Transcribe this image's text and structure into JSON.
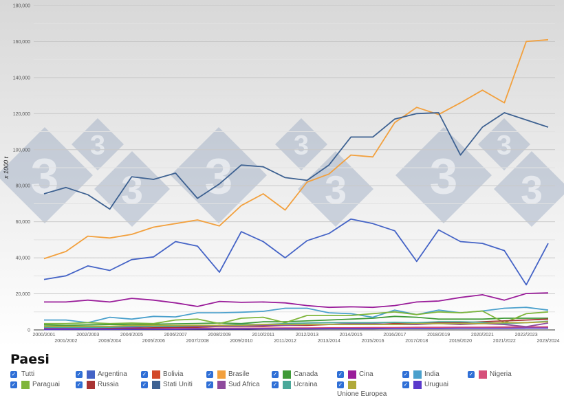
{
  "chart_data": {
    "type": "line",
    "title": "",
    "xlabel": "",
    "ylabel": "x 1000 t",
    "ylim": [
      0,
      180000
    ],
    "yticks": [
      0,
      20000,
      40000,
      60000,
      80000,
      100000,
      120000,
      140000,
      160000,
      180000
    ],
    "ytick_labels": [
      "0",
      "20,000",
      "40,000",
      "60,000",
      "80,000",
      "100,000",
      "120,000",
      "140,000",
      "160,000",
      "180,000"
    ],
    "grid": true,
    "categories": [
      "2000/2001",
      "2001/2002",
      "2002/2003",
      "2003/2004",
      "2004/2005",
      "2005/2006",
      "2006/2007",
      "2007/2008",
      "2008/2009",
      "2009/2010",
      "2010/2011",
      "2011/2012",
      "2012/2013",
      "2013/2014",
      "2014/2015",
      "2015/2016",
      "2016/2017",
      "2017/2018",
      "2018/2019",
      "2019/2020",
      "2020/2021",
      "2021/2022",
      "2022/2023",
      "2023/2024"
    ],
    "legend_placement": "bottom",
    "series": [
      {
        "name": "Argentina",
        "color": "#4463c6",
        "values": [
          28000,
          30000,
          35500,
          33000,
          39000,
          40500,
          49000,
          46500,
          32000,
          54500,
          49000,
          40000,
          49500,
          53500,
          61500,
          59000,
          55000,
          38000,
          55500,
          49000,
          48000,
          44000,
          25000,
          48000
        ]
      },
      {
        "name": "Bolivia",
        "color": "#d2492a",
        "values": [
          600,
          600,
          700,
          700,
          700,
          800,
          800,
          800,
          900,
          900,
          900,
          1000,
          1000,
          1000,
          1100,
          1100,
          1100,
          1200,
          1200,
          1200,
          1300,
          1300,
          1300,
          1400
        ]
      },
      {
        "name": "Brasile",
        "color": "#f2a03d",
        "values": [
          39500,
          43500,
          52000,
          51000,
          53000,
          57000,
          59000,
          61000,
          57700,
          69000,
          75500,
          66500,
          82000,
          86500,
          97000,
          96000,
          115000,
          123500,
          119500,
          126000,
          133000,
          126000,
          160000,
          161000
        ]
      },
      {
        "name": "Canada",
        "color": "#3f9a37",
        "values": [
          2800,
          2500,
          2800,
          3000,
          3000,
          3200,
          3400,
          3600,
          3800,
          3500,
          4500,
          4500,
          5000,
          5500,
          6000,
          6500,
          7500,
          7000,
          6000,
          6000,
          6000,
          6500,
          6500,
          6500
        ]
      },
      {
        "name": "Cina",
        "color": "#9a1d9a",
        "values": [
          15500,
          15500,
          16500,
          15500,
          17500,
          16500,
          15000,
          13000,
          15800,
          15300,
          15500,
          15000,
          13500,
          12500,
          12800,
          12500,
          13500,
          15500,
          16000,
          18000,
          19500,
          16500,
          20200,
          20500
        ]
      },
      {
        "name": "India",
        "color": "#4aa0cc",
        "values": [
          5500,
          5500,
          4000,
          7000,
          6000,
          7500,
          7200,
          9500,
          9500,
          9800,
          10300,
          12000,
          12000,
          9500,
          9000,
          7000,
          11000,
          8500,
          11000,
          9500,
          10500,
          12000,
          12500,
          11000
        ]
      },
      {
        "name": "Nigeria",
        "color": "#d64f7a",
        "values": [
          500,
          600,
          600,
          700,
          700,
          800,
          800,
          900,
          900,
          1000,
          1000,
          1100,
          1100,
          1200,
          1200,
          1300,
          1300,
          1400,
          1400,
          1500,
          1500,
          1600,
          1600,
          1700
        ]
      },
      {
        "name": "Paraguai",
        "color": "#7fb53a",
        "values": [
          3500,
          3500,
          4000,
          3500,
          3800,
          3500,
          5500,
          6000,
          3500,
          6500,
          7000,
          4000,
          8000,
          8000,
          8000,
          9000,
          10000,
          8500,
          10000,
          9500,
          10500,
          4000,
          9000,
          10000
        ]
      },
      {
        "name": "Russia",
        "color": "#a83434",
        "values": [
          500,
          800,
          900,
          1000,
          1000,
          1200,
          1500,
          1500,
          2000,
          2000,
          2000,
          2500,
          2500,
          3000,
          3000,
          3000,
          3500,
          3500,
          4000,
          4000,
          4500,
          5000,
          5500,
          6000
        ]
      },
      {
        "name": "Stati Uniti",
        "color": "#3d6191",
        "values": [
          75500,
          79000,
          75000,
          67000,
          85000,
          83500,
          87000,
          73000,
          81000,
          91500,
          90500,
          84500,
          83000,
          91500,
          107000,
          107000,
          117000,
          120000,
          120500,
          97000,
          112500,
          120500,
          116500,
          112500
        ]
      },
      {
        "name": "Sud Africa",
        "color": "#8e4a9c",
        "values": [
          1000,
          1000,
          1000,
          1500,
          1500,
          2000,
          2000,
          2000,
          2000,
          2000,
          2500,
          2500,
          3000,
          3000,
          3500,
          3500,
          3000,
          3000,
          3500,
          3000,
          3500,
          3000,
          1800,
          3800
        ]
      },
      {
        "name": "Ucraina",
        "color": "#4aa89a",
        "values": [
          1500,
          1500,
          1500,
          1500,
          2000,
          2000,
          2000,
          2500,
          2500,
          3000,
          3000,
          3500,
          3800,
          4000,
          4000,
          4000,
          4200,
          4000,
          4500,
          4500,
          4200,
          3500,
          4000,
          4800
        ]
      },
      {
        "name": "Unione Europea",
        "color": "#b0a93a",
        "values": [
          2000,
          2000,
          2000,
          2000,
          2500,
          2500,
          2500,
          2500,
          2500,
          2500,
          3000,
          3000,
          3000,
          3000,
          3000,
          3000,
          3000,
          3500,
          3500,
          3500,
          3500,
          4000,
          4000,
          4500
        ]
      },
      {
        "name": "Uruguai",
        "color": "#5a3acb",
        "values": [
          200,
          300,
          300,
          300,
          400,
          400,
          400,
          500,
          500,
          500,
          600,
          600,
          600,
          700,
          700,
          700,
          800,
          800,
          800,
          900,
          900,
          900,
          1000,
          1000
        ]
      }
    ]
  },
  "legend": {
    "title": "Paesi",
    "items": [
      {
        "label": "Tutti",
        "checked": true,
        "color": ""
      },
      {
        "label": "Argentina",
        "checked": true,
        "color": "#4463c6"
      },
      {
        "label": "Bolivia",
        "checked": true,
        "color": "#d2492a"
      },
      {
        "label": "Brasile",
        "checked": true,
        "color": "#f2a03d"
      },
      {
        "label": "Canada",
        "checked": true,
        "color": "#3f9a37"
      },
      {
        "label": "Cina",
        "checked": true,
        "color": "#9a1d9a"
      },
      {
        "label": "India",
        "checked": true,
        "color": "#4aa0cc"
      },
      {
        "label": "Nigeria",
        "checked": true,
        "color": "#d64f7a"
      },
      {
        "label": "Paraguai",
        "checked": true,
        "color": "#7fb53a"
      },
      {
        "label": "Russia",
        "checked": true,
        "color": "#a83434"
      },
      {
        "label": "Stati Uniti",
        "checked": true,
        "color": "#3d6191"
      },
      {
        "label": "Sud Africa",
        "checked": true,
        "color": "#8e4a9c"
      },
      {
        "label": "Ucraina",
        "checked": true,
        "color": "#4aa89a"
      },
      {
        "label": "Unione Europea",
        "checked": true,
        "color": "#b0a93a",
        "below": true
      },
      {
        "label": "Uruguai",
        "checked": true,
        "color": "#5a3acb"
      }
    ]
  },
  "watermark": {
    "text": "3",
    "color": "#9aa9c2"
  }
}
